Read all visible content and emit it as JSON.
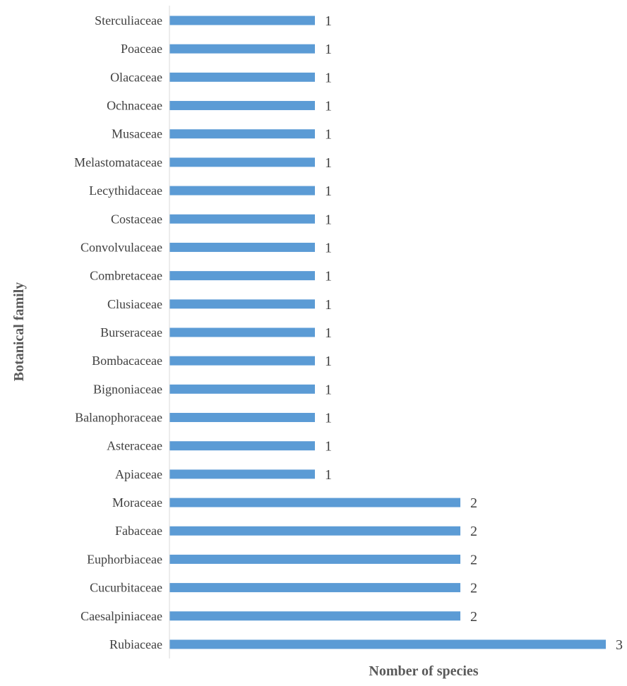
{
  "chart_data": {
    "type": "bar",
    "orientation": "horizontal",
    "categories": [
      "Sterculiaceae",
      "Poaceae",
      "Olacaceae",
      "Ochnaceae",
      "Musaceae",
      "Melastomataceae",
      "Lecythidaceae",
      "Costaceae",
      "Convolvulaceae",
      "Combretaceae",
      "Clusiaceae",
      "Burseraceae",
      "Bombacaceae",
      "Bignoniaceae",
      "Balanophoraceae",
      "Asteraceae",
      "Apiaceae",
      "Moraceae",
      "Fabaceae",
      "Euphorbiaceae",
      "Cucurbitaceae",
      "Caesalpiniaceae",
      "Rubiaceae"
    ],
    "values": [
      1,
      1,
      1,
      1,
      1,
      1,
      1,
      1,
      1,
      1,
      1,
      1,
      1,
      1,
      1,
      1,
      1,
      2,
      2,
      2,
      2,
      2,
      3
    ],
    "title": "",
    "xlabel": "Nomber of species",
    "ylabel": "Botanical family",
    "xlim": [
      0,
      3
    ],
    "grid": false,
    "legend": "none",
    "data_labels": true,
    "bar_color": "#5b9bd5",
    "axis_color": "#d9d9d9",
    "text_color": "#404040"
  }
}
